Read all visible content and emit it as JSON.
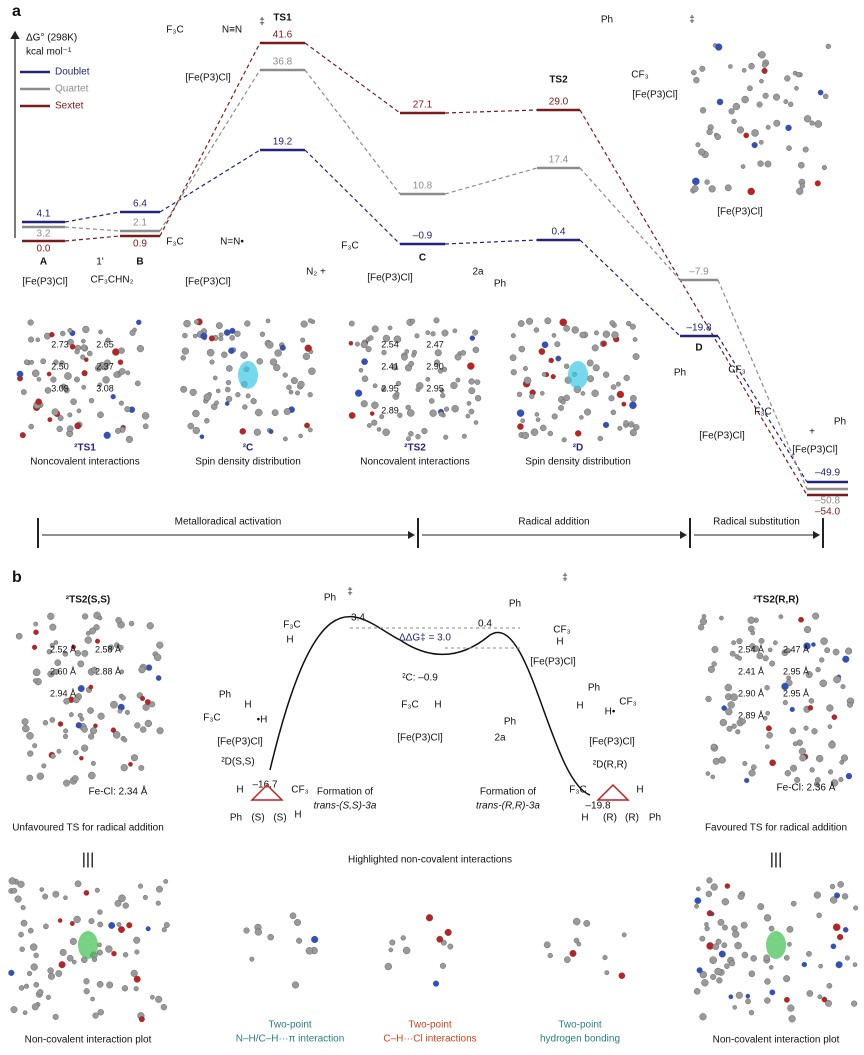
{
  "panel_a": {
    "label": "a",
    "axis_title": "ΔG° (298K)",
    "axis_unit": "kcal mol⁻¹",
    "legend": [
      "Doublet",
      "Quartet",
      "Sextet"
    ],
    "states": [
      {
        "name": "A",
        "doublet": "4.1",
        "quartet": "3.2",
        "sextet": "0.0"
      },
      {
        "name": "B",
        "doublet": "6.4",
        "quartet": "2.1",
        "sextet": "0.9"
      },
      {
        "name": "TS1",
        "doublet": "19.2",
        "quartet": "36.8",
        "sextet": "41.6"
      },
      {
        "name": "C",
        "doublet": "–0.9",
        "quartet": "10.8",
        "sextet": "27.1"
      },
      {
        "name": "TS2",
        "doublet": "0.4",
        "quartet": "17.4",
        "sextet": "29.0"
      },
      {
        "name": "D",
        "doublet": "–19.8",
        "quartet": "–7.9"
      },
      {
        "doublet": "–49.9",
        "quartet": "–50.8",
        "sextet": "–54.0"
      }
    ],
    "annotations": [
      "F₃C",
      "N≡N",
      "‡",
      "[Fe(P3)Cl]",
      "[Fe(P3)Cl]",
      "1'",
      "CF₃CHN₂",
      "F₃C",
      "N=N•",
      "[Fe(P3)Cl]",
      "N₂ +",
      "F₃C",
      "[Fe(P3)Cl]",
      "2a",
      "Ph",
      "Ph",
      "CF₃",
      "‡",
      "[Fe(P3)Cl]",
      "Ph",
      "CF₃",
      "[Fe(P3)Cl]",
      "F₃C",
      "Ph",
      "+",
      "[Fe(P3)Cl]",
      "[Fe(P3)Cl]"
    ],
    "structures": [
      {
        "caption": "²TS1",
        "subcaption": "Noncovalent interactions",
        "distances": [
          "2.73",
          "2.65",
          "2.50",
          "2.37",
          "3.09",
          "3.08"
        ]
      },
      {
        "caption": "²C",
        "subcaption": "Spin density distribution"
      },
      {
        "caption": "²TS2",
        "subcaption": "Noncovalent interactions",
        "distances": [
          "2.54",
          "2.47",
          "2.41",
          "2.90",
          "2.95",
          "2.95",
          "2.89"
        ]
      },
      {
        "caption": "²D",
        "subcaption": "Spin density distribution"
      }
    ],
    "stages": [
      "Metalloradical activation",
      "Radical addition",
      "Radical substitution"
    ]
  },
  "panel_b": {
    "label": "b",
    "left": {
      "title": "²TS2(S,S)",
      "fecl": "Fe-Cl: 2.34 Å",
      "caption": "Unfavoured TS for radical addition",
      "equiv": "|||",
      "plot_caption": "Non-covalent interaction plot",
      "distances": [
        "2.52 Å",
        "2.58 Å",
        "2.60 Å",
        "2.88 Å",
        "2.94 Å"
      ]
    },
    "right": {
      "title": "²TS2(R,R)",
      "fecl": "Fe-Cl: 2.36 Å",
      "caption": "Favoured TS for radical addition",
      "equiv": "|||",
      "plot_caption": "Non-covalent interaction plot",
      "distances": [
        "2.54 Å",
        "2.47 Å",
        "2.41 Å",
        "2.95 Å",
        "2.90 Å",
        "2.95 Å",
        "2.89 Å"
      ]
    },
    "energies": [
      "–16.7",
      "3.4",
      "ΔΔG‡ = 3.0",
      "0.4",
      "²C: –0.9",
      "–19.8"
    ],
    "annotations": [
      "Ph",
      "F₃C",
      "H",
      "‡",
      "Ph",
      "CF₃",
      "H",
      "[Fe(P3)Cl]",
      "‡",
      "F₃C",
      "H",
      "[Fe(P3)Cl]",
      "2a",
      "Ph",
      "Ph",
      "H",
      "F₃C",
      "•H",
      "[Fe(P3)Cl]",
      "²D(S,S)",
      "Ph",
      "H",
      "H•",
      "CF₃",
      "[Fe(P3)Cl]",
      "²D(R,R)"
    ],
    "formation": [
      "Formation of",
      "trans-(S,S)-3a",
      "Formation of",
      "trans-(R,R)-3a"
    ],
    "cyclopropanes": [
      "H",
      "CF₃",
      "Ph",
      "(S)",
      "(S)",
      "H",
      "F₃C",
      "H",
      "H",
      "(R)",
      "(R)",
      "Ph"
    ],
    "highlight_title": "Highlighted non-covalent interactions",
    "interactions": [
      {
        "title": "Two-point",
        "text": "N–H/C–H···π interaction"
      },
      {
        "title": "Two-point",
        "text": "C–H···Cl interactions"
      },
      {
        "title": "Two-point",
        "text": "hydrogen bonding"
      }
    ]
  }
}
